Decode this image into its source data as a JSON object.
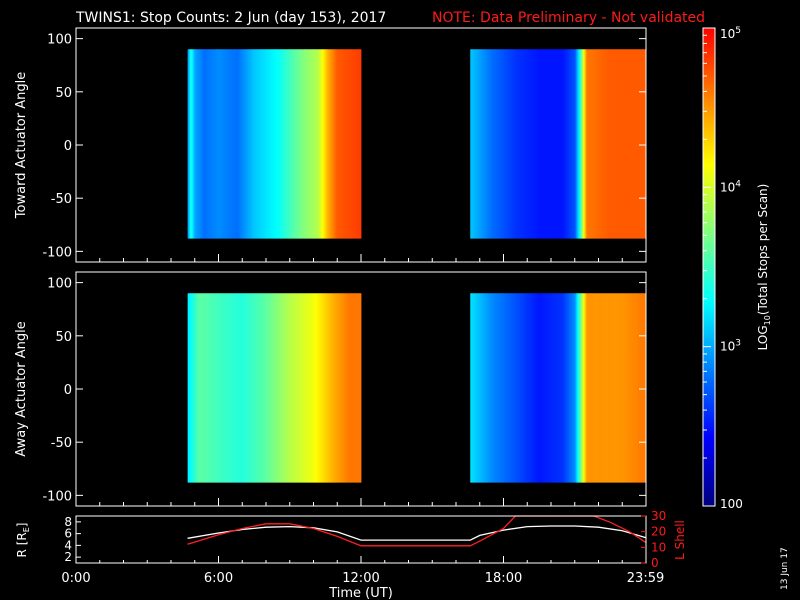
{
  "title": {
    "main": "TWINS1: Stop Counts:  2 Jun (day 153), 2017",
    "note": "NOTE: Data Preliminary - Not validated"
  },
  "stamp": "13 Jun 17",
  "colors": {
    "background": "#000000",
    "axes": "#ffffff",
    "note": "#ff1a1a",
    "lshell": "#ff2020",
    "radius": "#ffffff"
  },
  "chart_data": [
    {
      "type": "heatmap",
      "ylabel": "Toward Actuator Angle",
      "ylim": [
        -110,
        110
      ],
      "yticks": [
        100,
        50,
        0,
        -50,
        -100
      ],
      "x_unit": "hours UT",
      "xlim": [
        0,
        24
      ],
      "data_segments": [
        [
          4.7,
          12.0
        ],
        [
          16.6,
          24.0
        ]
      ],
      "angle_range": [
        -88,
        90
      ],
      "value_profile_log10": [
        [
          4.7,
          2.9
        ],
        [
          4.85,
          3.4
        ],
        [
          5.0,
          3.0
        ],
        [
          5.4,
          2.8
        ],
        [
          6.0,
          2.9
        ],
        [
          6.8,
          2.8
        ],
        [
          7.5,
          3.1
        ],
        [
          8.5,
          3.3
        ],
        [
          9.5,
          3.7
        ],
        [
          10.2,
          3.9
        ],
        [
          10.6,
          4.4
        ],
        [
          11.0,
          4.7
        ],
        [
          12.0,
          4.8
        ],
        [
          16.6,
          3.1
        ],
        [
          17.5,
          2.8
        ],
        [
          18.5,
          2.6
        ],
        [
          19.5,
          2.5
        ],
        [
          20.5,
          2.5
        ],
        [
          21.0,
          2.7
        ],
        [
          21.2,
          3.3
        ],
        [
          21.5,
          4.6
        ],
        [
          22.5,
          4.7
        ],
        [
          24.0,
          4.7
        ]
      ]
    },
    {
      "type": "heatmap",
      "ylabel": "Away Actuator Angle",
      "ylim": [
        -110,
        110
      ],
      "yticks": [
        100,
        50,
        0,
        -50,
        -100
      ],
      "x_unit": "hours UT",
      "xlim": [
        0,
        24
      ],
      "data_segments": [
        [
          4.7,
          12.0
        ],
        [
          16.6,
          24.0
        ]
      ],
      "angle_range": [
        -88,
        90
      ],
      "value_profile_log10": [
        [
          4.7,
          3.2
        ],
        [
          5.2,
          3.6
        ],
        [
          6.0,
          3.5
        ],
        [
          7.0,
          3.4
        ],
        [
          8.0,
          3.6
        ],
        [
          9.0,
          3.9
        ],
        [
          10.0,
          4.1
        ],
        [
          10.8,
          4.4
        ],
        [
          11.5,
          4.6
        ],
        [
          12.0,
          4.6
        ],
        [
          16.6,
          3.2
        ],
        [
          17.5,
          2.9
        ],
        [
          18.5,
          2.7
        ],
        [
          19.5,
          2.5
        ],
        [
          20.5,
          2.6
        ],
        [
          21.0,
          2.9
        ],
        [
          21.2,
          3.5
        ],
        [
          21.5,
          4.5
        ],
        [
          23.0,
          4.5
        ],
        [
          24.0,
          4.6
        ]
      ]
    },
    {
      "type": "line",
      "xlabel": "Time (UT)",
      "xticks": [
        "0:00",
        "6:00",
        "12:00",
        "18:00",
        "23:59"
      ],
      "xtick_hours": [
        0,
        6,
        12,
        18,
        23.98
      ],
      "xlim": [
        0,
        24
      ],
      "ylabel_left": "R [R",
      "ylabel_left_sub": "E",
      "ylabel_left_end": "]",
      "ylim_left": [
        1,
        9
      ],
      "yticks_left": [
        2,
        4,
        6,
        8
      ],
      "ylabel_right": "L Shell",
      "ylim_right": [
        0,
        30
      ],
      "yticks_right": [
        0,
        10,
        20,
        30
      ],
      "series": [
        {
          "axis": "left",
          "x": [
            4.7,
            6.0,
            7.0,
            8.0,
            9.0,
            10.0,
            11.0,
            12.0,
            13.0,
            14.0,
            15.0,
            16.6,
            17.0,
            18.0,
            19.0,
            20.0,
            21.0,
            22.0,
            23.0,
            24.0
          ],
          "values": [
            5.2,
            6.1,
            6.7,
            7.1,
            7.2,
            7.0,
            6.3,
            4.9,
            4.9,
            4.9,
            4.9,
            4.9,
            5.7,
            6.6,
            7.2,
            7.3,
            7.3,
            7.1,
            6.5,
            5.3
          ]
        },
        {
          "axis": "right",
          "x": [
            4.7,
            6.0,
            7.0,
            8.0,
            9.0,
            10.0,
            11.0,
            12.0,
            13.0,
            14.0,
            15.0,
            16.6,
            17.0,
            18.0,
            18.5,
            21.8,
            22.5,
            23.3,
            24.0
          ],
          "values": [
            12,
            18,
            22,
            25,
            25,
            22,
            17,
            11,
            11,
            11,
            11,
            11,
            14,
            22,
            30,
            30,
            26,
            20,
            13
          ]
        }
      ]
    }
  ],
  "colorbar": {
    "label": "LOG",
    "label_sub": "10",
    "label_rest": "(Total Stops per Scan)",
    "tick_labels": [
      "10",
      "10",
      "10",
      "100"
    ],
    "tick_exps": [
      "5",
      "4",
      "3",
      ""
    ],
    "tick_log_values": [
      5,
      4,
      3,
      2
    ],
    "range_log10": [
      2,
      5
    ],
    "colormap": [
      "#00007f",
      "#0000ff",
      "#0080ff",
      "#00ffff",
      "#80ff80",
      "#ffff00",
      "#ff8000",
      "#ff0000"
    ]
  }
}
